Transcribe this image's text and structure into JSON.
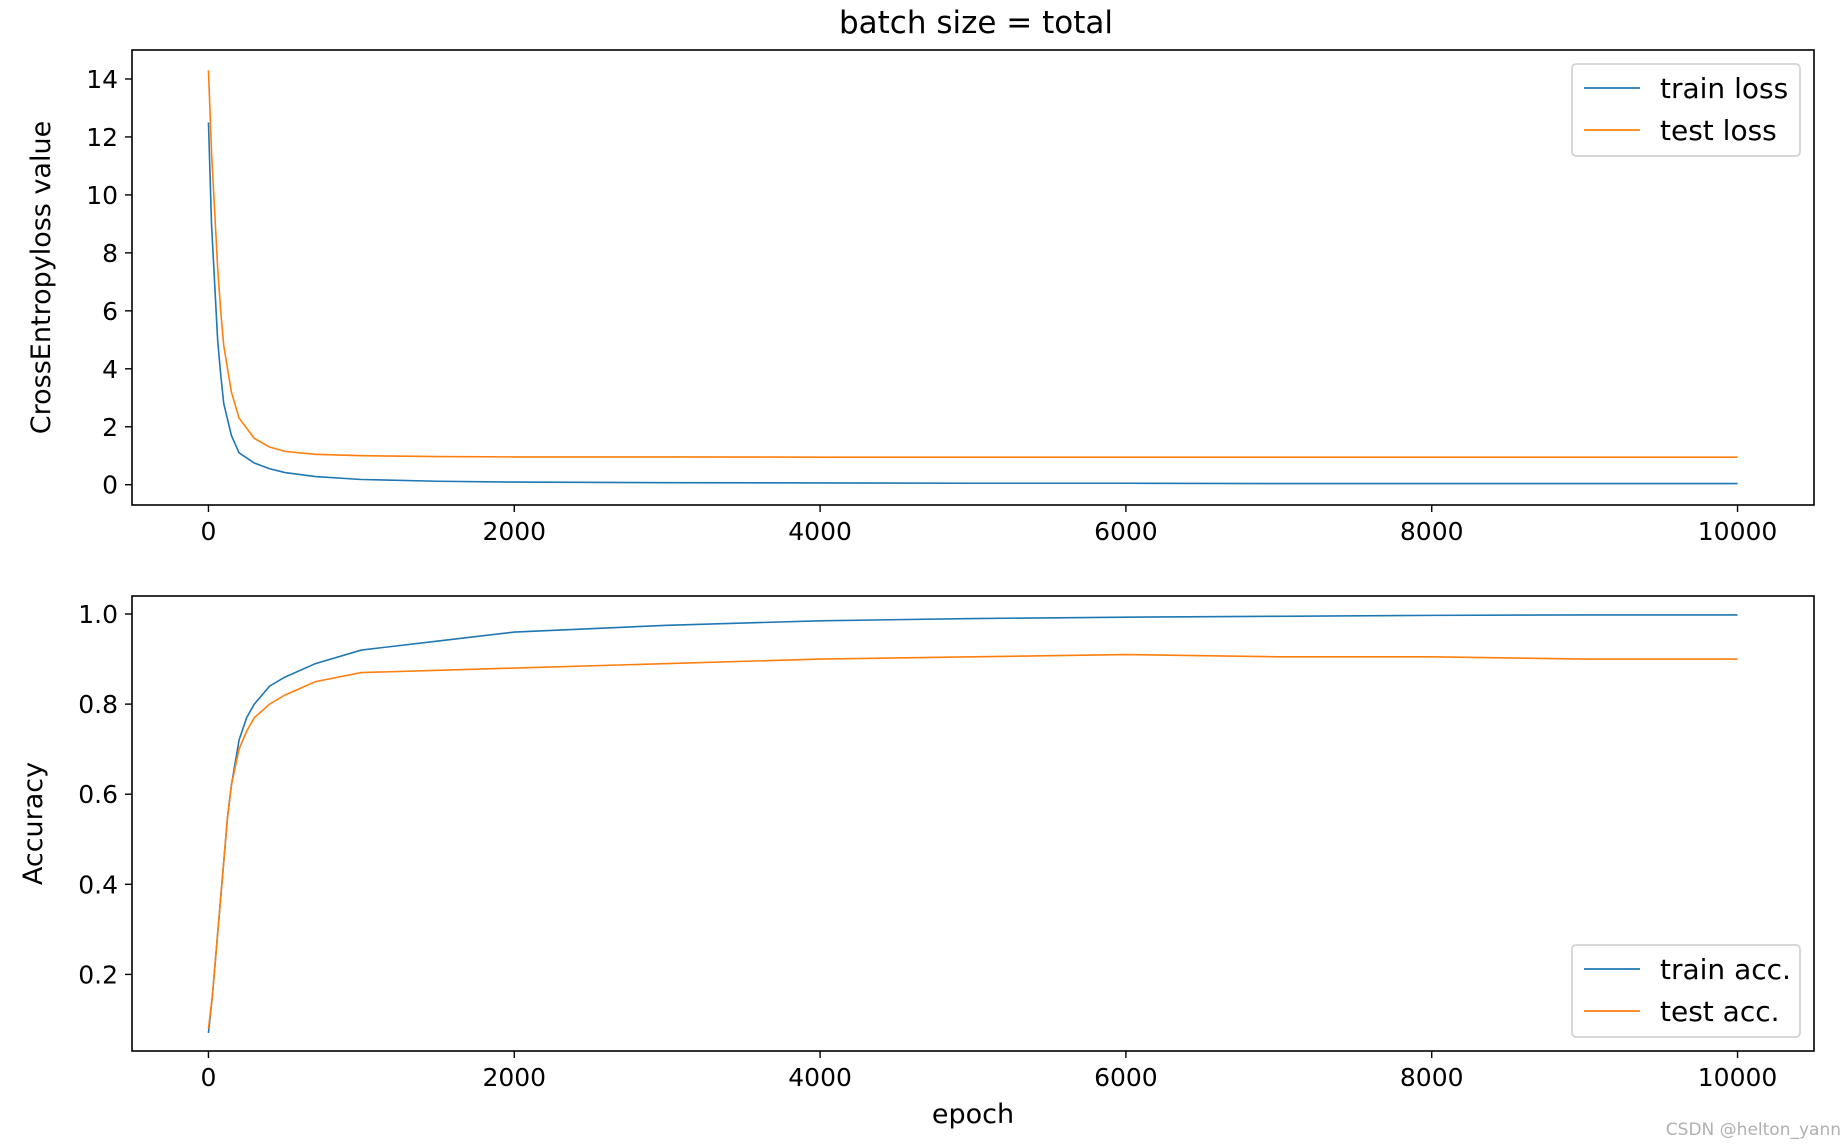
{
  "figure_title": "batch size = total",
  "watermark": "CSDN @helton_yann",
  "colors": {
    "train": "#1f77b4",
    "test": "#ff7f0e"
  },
  "chart_data": [
    {
      "type": "line",
      "title": "batch size = total",
      "xlabel": "",
      "ylabel": "CrossEntropyloss value",
      "xlim": [
        -500,
        10500
      ],
      "ylim": [
        -0.7,
        15.0
      ],
      "xticks": [
        0,
        2000,
        4000,
        6000,
        8000,
        10000
      ],
      "yticks": [
        0,
        2,
        4,
        6,
        8,
        10,
        12,
        14
      ],
      "grid": false,
      "legend_position": "top-right",
      "series": [
        {
          "name": "train loss",
          "color": "#1f77b4",
          "x": [
            0,
            20,
            40,
            60,
            80,
            100,
            150,
            200,
            300,
            400,
            500,
            700,
            1000,
            1500,
            2000,
            3000,
            4000,
            5000,
            6000,
            7000,
            8000,
            9000,
            10000
          ],
          "y": [
            12.5,
            9.0,
            7.0,
            5.0,
            3.8,
            2.8,
            1.7,
            1.1,
            0.75,
            0.55,
            0.42,
            0.28,
            0.18,
            0.12,
            0.09,
            0.07,
            0.06,
            0.05,
            0.05,
            0.04,
            0.04,
            0.04,
            0.04
          ]
        },
        {
          "name": "test loss",
          "color": "#ff7f0e",
          "x": [
            0,
            20,
            40,
            60,
            80,
            100,
            150,
            200,
            300,
            400,
            500,
            700,
            1000,
            1500,
            2000,
            3000,
            4000,
            5000,
            6000,
            7000,
            8000,
            9000,
            10000
          ],
          "y": [
            14.3,
            11.5,
            9.5,
            7.5,
            6.0,
            4.8,
            3.2,
            2.3,
            1.6,
            1.3,
            1.15,
            1.05,
            1.0,
            0.97,
            0.96,
            0.96,
            0.95,
            0.95,
            0.95,
            0.95,
            0.95,
            0.95,
            0.95
          ]
        }
      ]
    },
    {
      "type": "line",
      "title": "",
      "xlabel": "epoch",
      "ylabel": "Accuracy",
      "xlim": [
        -500,
        10500
      ],
      "ylim": [
        0.03,
        1.04
      ],
      "xticks": [
        0,
        2000,
        4000,
        6000,
        8000,
        10000
      ],
      "yticks": [
        0.2,
        0.4,
        0.6,
        0.8,
        1.0
      ],
      "grid": false,
      "legend_position": "bottom-right",
      "series": [
        {
          "name": "train acc.",
          "color": "#1f77b4",
          "x": [
            0,
            25,
            50,
            75,
            100,
            125,
            150,
            200,
            250,
            300,
            400,
            500,
            700,
            1000,
            1500,
            2000,
            3000,
            4000,
            5000,
            6000,
            7000,
            8000,
            9000,
            10000
          ],
          "y": [
            0.07,
            0.15,
            0.25,
            0.35,
            0.45,
            0.55,
            0.62,
            0.72,
            0.77,
            0.8,
            0.84,
            0.86,
            0.89,
            0.92,
            0.94,
            0.96,
            0.975,
            0.985,
            0.99,
            0.993,
            0.995,
            0.997,
            0.998,
            0.998
          ]
        },
        {
          "name": "test acc.",
          "color": "#ff7f0e",
          "x": [
            0,
            25,
            50,
            75,
            100,
            125,
            150,
            200,
            250,
            300,
            400,
            500,
            700,
            1000,
            1500,
            2000,
            3000,
            4000,
            5000,
            6000,
            7000,
            8000,
            9000,
            10000
          ],
          "y": [
            0.08,
            0.15,
            0.25,
            0.35,
            0.45,
            0.55,
            0.62,
            0.7,
            0.74,
            0.77,
            0.8,
            0.82,
            0.85,
            0.87,
            0.875,
            0.88,
            0.89,
            0.9,
            0.905,
            0.91,
            0.905,
            0.905,
            0.9,
            0.9
          ]
        }
      ]
    }
  ]
}
